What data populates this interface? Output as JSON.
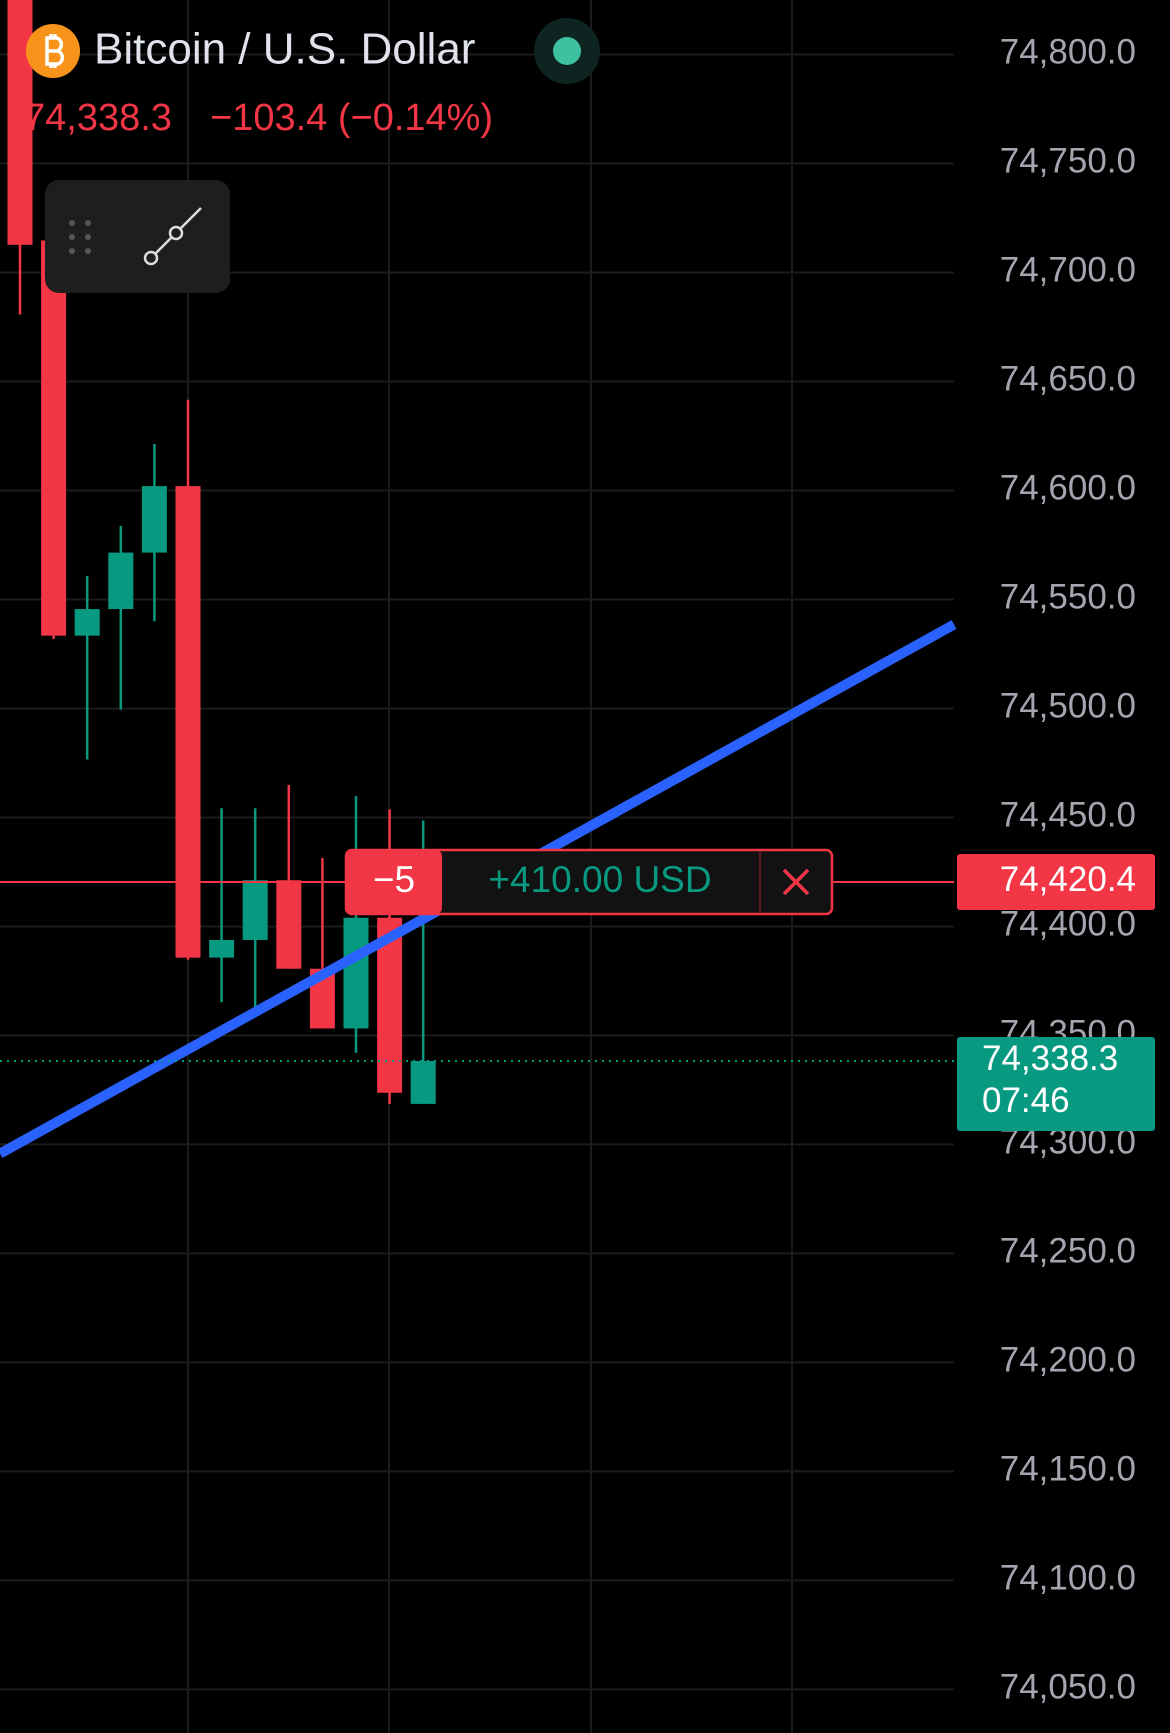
{
  "chart_data": {
    "type": "candlestick",
    "title": "Bitcoin / U.S. Dollar",
    "price": "74,338.3",
    "change": "−103.4 (−0.14%)",
    "up_color": "#089981",
    "down_color": "#f23645",
    "open": [
      74830,
      74714.7,
      74533.4,
      74545.6,
      74571.5,
      74602,
      74385.7,
      74393.8,
      74421.2,
      74380.6,
      74353.2,
      74404,
      74318.6
    ],
    "high": [
      74840,
      74714.7,
      74560.8,
      74583.7,
      74621.3,
      74641.6,
      74454.2,
      74454.2,
      74464.9,
      74431.4,
      74459.8,
      74453.7,
      74448.6
    ],
    "low": [
      74680.7,
      74531.9,
      74476.6,
      74499.4,
      74540,
      74384.7,
      74365.3,
      74360.3,
      74380.6,
      74353.2,
      74342,
      74318.6,
      74318.6
    ],
    "close": [
      74712.7,
      74533.4,
      74545.6,
      74571.5,
      74602,
      74385.7,
      74393.8,
      74421.2,
      74380.6,
      74353.2,
      74404,
      74323.7,
      74338.3
    ],
    "ylim": [
      74030,
      74825
    ],
    "yticks": [
      {
        "value": 74800,
        "label": "74,800.0"
      },
      {
        "value": 74750,
        "label": "74,750.0"
      },
      {
        "value": 74700,
        "label": "74,700.0"
      },
      {
        "value": 74650,
        "label": "74,650.0"
      },
      {
        "value": 74600,
        "label": "74,600.0"
      },
      {
        "value": 74550,
        "label": "74,550.0"
      },
      {
        "value": 74500,
        "label": "74,500.0"
      },
      {
        "value": 74450,
        "label": "74,450.0"
      },
      {
        "value": 74400,
        "label": "74,400.0"
      },
      {
        "value": 74350,
        "label": "74,350.0"
      },
      {
        "value": 74300,
        "label": "74,300.0"
      },
      {
        "value": 74250,
        "label": "74,250.0"
      },
      {
        "value": 74200,
        "label": "74,200.0"
      },
      {
        "value": 74150,
        "label": "74,150.0"
      },
      {
        "value": 74100,
        "label": "74,100.0"
      },
      {
        "value": 74050,
        "label": "74,050.0"
      }
    ],
    "grid": true,
    "trendline": {
      "color": "#2962ff",
      "values": [
        74295.8,
        74538.5
      ]
    },
    "last_price": {
      "value": 74338.3,
      "label": "74,338.3",
      "countdown": "07:46"
    },
    "order": {
      "price": 74420.4,
      "price_label": "74,420.4",
      "quantity": "−5",
      "pnl": "+410.00 USD"
    }
  }
}
